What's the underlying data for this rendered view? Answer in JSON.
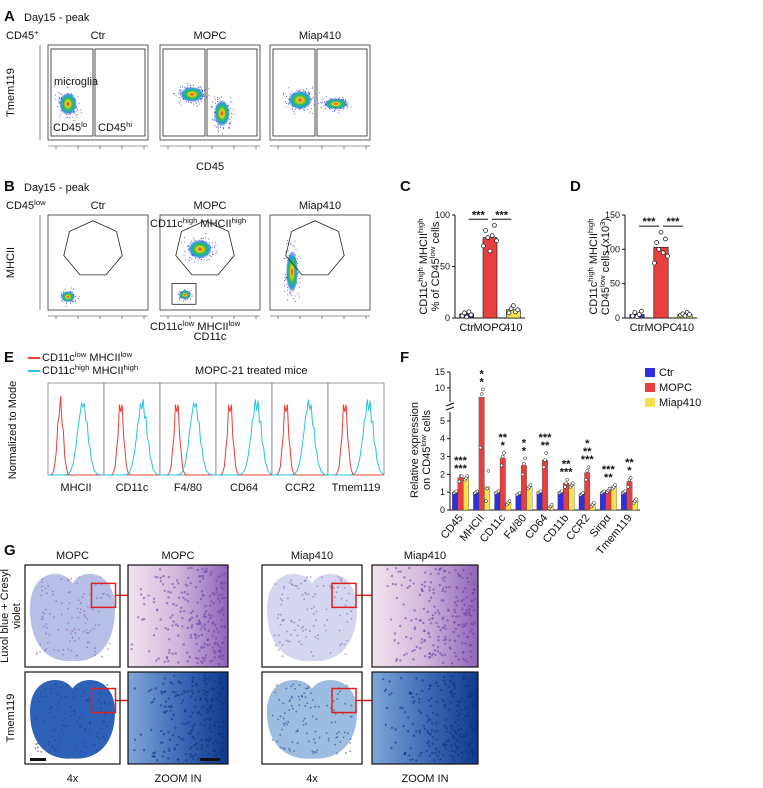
{
  "panel_a": {
    "label": "A",
    "title": "Day15 - peak",
    "gate": [
      {
        "text": "CD45"
      },
      {
        "sup": "+"
      }
    ],
    "plots": [
      "Ctr",
      "MOPC",
      "Miap410"
    ],
    "y_label": "Tmem119",
    "x_label": "CD45",
    "population": "microglia",
    "gates": [
      [
        {
          "text": "CD45"
        },
        {
          "sup": "lo"
        }
      ],
      [
        {
          "text": "CD45"
        },
        {
          "sup": "hi"
        }
      ]
    ]
  },
  "panel_b": {
    "label": "B",
    "title": "Day15 - peak",
    "gate": [
      {
        "text": "CD45"
      },
      {
        "sup": "low"
      }
    ],
    "plots": [
      "Ctr",
      "MOPC",
      "Miap410"
    ],
    "y_label": "MHCII",
    "x_label": "CD11c",
    "gates": [
      [
        {
          "text": "CD11c"
        },
        {
          "sup": "high"
        },
        {
          "text": " MHCII"
        },
        {
          "sup": "high"
        }
      ],
      [
        {
          "text": "CD11c"
        },
        {
          "sup": "low"
        },
        {
          "text": " MHCII"
        },
        {
          "sup": "low"
        }
      ]
    ]
  },
  "panel_c": {
    "label": "C",
    "type": "bar",
    "categories": [
      "Ctr",
      "MOPC",
      "410"
    ],
    "values": [
      4,
      78,
      8
    ],
    "points": [
      [
        2,
        5,
        1,
        6,
        3
      ],
      [
        70,
        85,
        78,
        65,
        80,
        90,
        75
      ],
      [
        5,
        9,
        12,
        6,
        8
      ]
    ],
    "colors": [
      "#3a3ad0",
      "#e8403f",
      "#f3e14e"
    ],
    "ylim": [
      0,
      100
    ],
    "yticks": [
      0,
      50,
      100
    ],
    "y_label": [
      [
        {
          "text": "CD11c"
        },
        {
          "sup": "high"
        },
        {
          "text": " MHCII"
        },
        {
          "sup": "high"
        }
      ],
      [
        {
          "text": "% of CD45"
        },
        {
          "sup": "low"
        },
        {
          "text": " cells"
        }
      ]
    ],
    "significance": [
      "***",
      "***"
    ]
  },
  "panel_d": {
    "label": "D",
    "type": "bar",
    "categories": [
      "Ctr",
      "MOPC",
      "410"
    ],
    "values": [
      5,
      103,
      5
    ],
    "points": [
      [
        3,
        8,
        2,
        5,
        10
      ],
      [
        80,
        110,
        100,
        125,
        95,
        115,
        90
      ],
      [
        4,
        6,
        3,
        8,
        5
      ]
    ],
    "colors": [
      "#3a3ad0",
      "#e8403f",
      "#f3e14e"
    ],
    "ylim": [
      0,
      150
    ],
    "yticks": [
      0,
      50,
      100,
      150
    ],
    "y_label": [
      [
        {
          "text": "CD11c"
        },
        {
          "sup": "high"
        },
        {
          "text": " MHCII"
        },
        {
          "sup": "high"
        }
      ],
      [
        {
          "text": "CD45"
        },
        {
          "sup": "low"
        },
        {
          "text": " cells (x10"
        },
        {
          "sup": "3"
        },
        {
          "text": ")"
        }
      ]
    ],
    "significance": [
      "***",
      "***"
    ]
  },
  "panel_e": {
    "label": "E",
    "legend": [
      [
        {
          "text": "CD11c"
        },
        {
          "sup": "low"
        },
        {
          "text": " MHCII"
        },
        {
          "sup": "low"
        }
      ],
      [
        {
          "text": "CD11c"
        },
        {
          "sup": "high"
        },
        {
          "text": " MHCII"
        },
        {
          "sup": "high"
        }
      ]
    ],
    "legend_colors": [
      "#e8403a",
      "#2ac3e0"
    ],
    "subtitle": "MOPC-21 treated mice",
    "y_label": "Normalized to Mode",
    "markers": [
      "MHCII",
      "CD11c",
      "F4/80",
      "CD64",
      "CCR2",
      "Tmem119"
    ]
  },
  "panel_f": {
    "label": "F",
    "type": "grouped_bar",
    "categories": [
      "CD45",
      "MHCII",
      "CD11c",
      "F4/80",
      "CD64",
      "CD11b",
      "CCR2",
      "Sirpα",
      "Tmem119"
    ],
    "series": [
      {
        "name": "Ctr",
        "color": "#2f2fe0",
        "values": [
          1,
          1,
          1,
          0.9,
          1,
          1,
          0.9,
          1,
          1
        ],
        "points": [
          [
            0.95,
            1,
            1.05
          ],
          [
            0.95,
            1,
            1.05
          ],
          [
            0.95,
            1,
            1.05
          ],
          [
            0.85,
            0.9,
            0.95
          ],
          [
            0.95,
            1,
            1.05
          ],
          [
            0.95,
            1,
            1.05
          ],
          [
            0.85,
            0.9,
            0.95
          ],
          [
            0.95,
            1,
            1.05
          ],
          [
            0.95,
            1,
            1.05
          ]
        ]
      },
      {
        "name": "MOPC",
        "color": "#e8403f",
        "values": [
          1.8,
          7,
          2.9,
          2.5,
          2.8,
          1.5,
          2.1,
          1.1,
          1.6
        ],
        "points": [
          [
            1.6,
            1.9,
            1.9
          ],
          [
            3.5,
            8,
            9.5
          ],
          [
            2.5,
            3,
            3.2
          ],
          [
            2,
            2.6,
            2.9
          ],
          [
            2.4,
            2.8,
            3.2
          ],
          [
            1.3,
            1.5,
            1.7
          ],
          [
            1.7,
            2.2,
            2.4
          ],
          [
            1,
            1.1,
            1.2
          ],
          [
            1.3,
            1.7,
            1.8
          ]
        ]
      },
      {
        "name": "Miap410",
        "color": "#f3e14e",
        "values": [
          1.8,
          1.3,
          0.4,
          1.3,
          0.2,
          1.4,
          0.3,
          1.3,
          0.5
        ],
        "points": [
          [
            1.7,
            1.8,
            1.9
          ],
          [
            0.5,
            1.2,
            2.2
          ],
          [
            0.3,
            0.4,
            0.5
          ],
          [
            1.2,
            1.3,
            1.4
          ],
          [
            0.1,
            0.2,
            0.3
          ],
          [
            1.3,
            1.4,
            1.5
          ],
          [
            0.2,
            0.3,
            0.4
          ],
          [
            1.2,
            1.3,
            1.4
          ],
          [
            0.4,
            0.5,
            0.6
          ]
        ]
      }
    ],
    "ylim": [
      0,
      15
    ],
    "axis_break": 5.5,
    "yticks": [
      0,
      1,
      2,
      3,
      4,
      5,
      10,
      15
    ],
    "y_label": [
      [
        {
          "text": "Relative expression"
        }
      ],
      [
        {
          "text": "on CD45"
        },
        {
          "sup": "low"
        },
        {
          "text": " cells"
        }
      ]
    ],
    "significance": [
      [
        "***",
        "***"
      ],
      [
        "*",
        "*"
      ],
      [
        "*",
        "**"
      ],
      [
        "*",
        "*"
      ],
      [
        "**",
        "***"
      ],
      [
        "***",
        "**"
      ],
      [
        "***",
        "**",
        "*"
      ],
      [
        "**",
        "***"
      ],
      [
        "*",
        "**"
      ]
    ]
  },
  "panel_g": {
    "label": "G",
    "columns": [
      "MOPC",
      "MOPC",
      "Miap410",
      "Miap410"
    ],
    "rows": [
      [
        "Luxol blue + Cresyl",
        "violet"
      ],
      [
        "Tmem119"
      ]
    ],
    "bottom": [
      "4x",
      "ZOOM IN",
      "4x",
      "ZOOM IN"
    ]
  }
}
